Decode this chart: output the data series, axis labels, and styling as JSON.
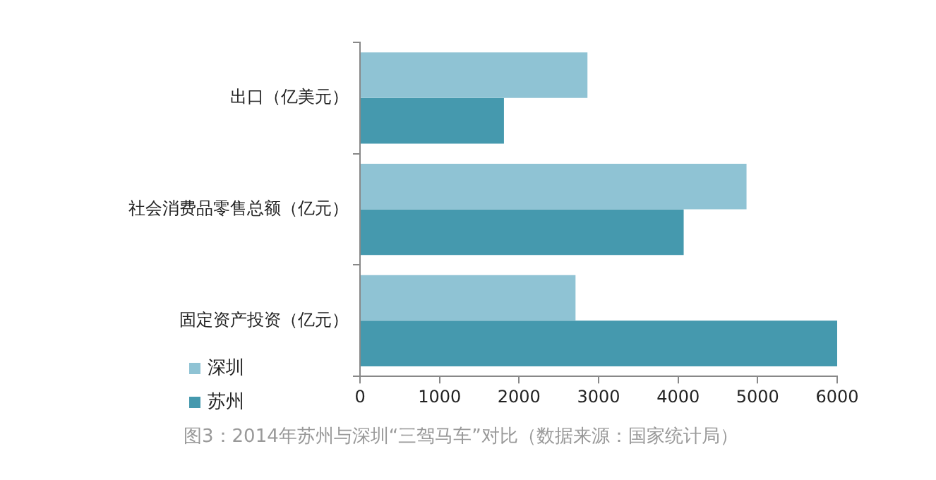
{
  "chart_data": {
    "type": "bar",
    "orientation": "horizontal",
    "categories": [
      "出口（亿美元）",
      "社会消费品零售总额（亿元）",
      "固定资产投资（亿元）"
    ],
    "series": [
      {
        "name": "深圳",
        "color": "#8fc3d4",
        "values": [
          2860,
          4860,
          2710
        ]
      },
      {
        "name": "苏州",
        "color": "#4599ae",
        "values": [
          1810,
          4070,
          6000
        ]
      }
    ],
    "xlim": [
      0,
      6000
    ],
    "xticks": [
      0,
      1000,
      2000,
      3000,
      4000,
      5000,
      6000
    ],
    "legend": "bottom left",
    "annotations": [
      "图3：2014年苏州与深圳“三驾马车”对比（数据来源：国家统计局）"
    ]
  }
}
